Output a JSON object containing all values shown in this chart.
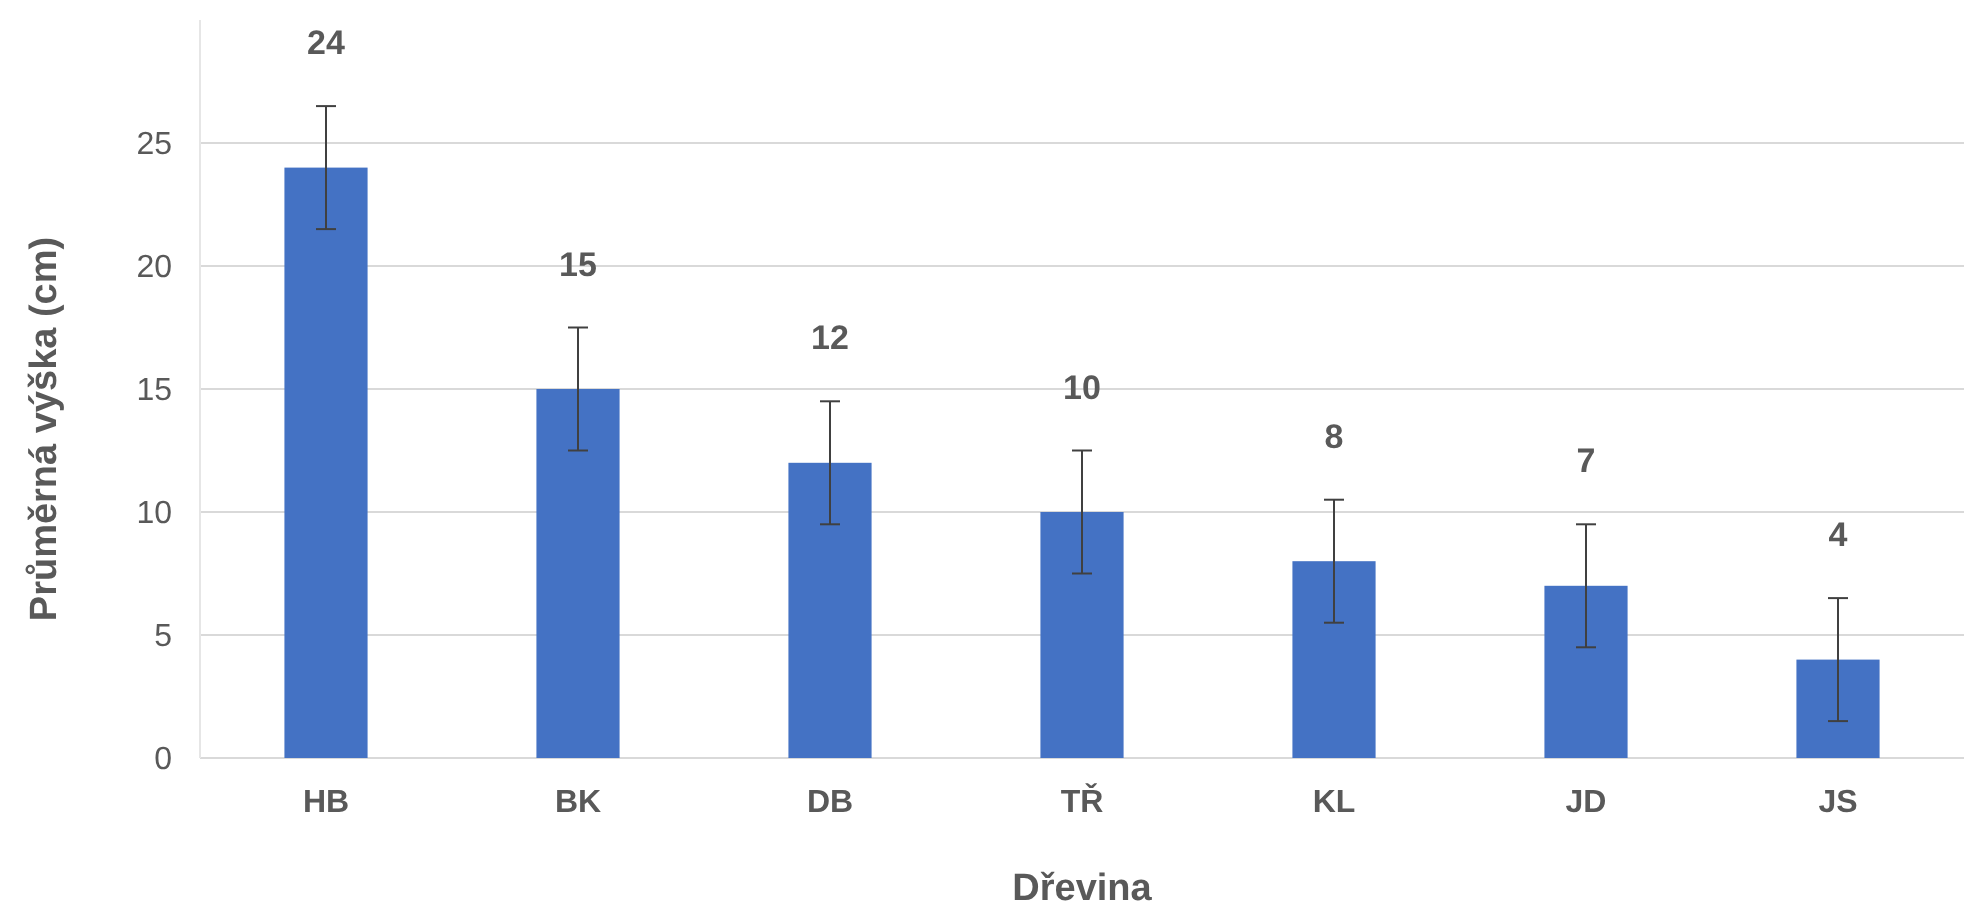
{
  "chart_data": {
    "type": "bar",
    "xlabel": "Dřevina",
    "ylabel": "Průměrná výška (cm)",
    "categories": [
      "HB",
      "BK",
      "DB",
      "TŘ",
      "KL",
      "JD",
      "JS"
    ],
    "values": [
      24,
      15,
      12,
      10,
      8,
      7,
      4
    ],
    "errors": [
      2.5,
      2.5,
      2.5,
      2.5,
      2.5,
      2.5,
      2.5
    ],
    "color": "#4472c4",
    "ylim": [
      0,
      30
    ],
    "yticks": [
      0,
      5,
      10,
      15,
      20,
      25
    ],
    "grid": "y",
    "data_labels": true
  }
}
